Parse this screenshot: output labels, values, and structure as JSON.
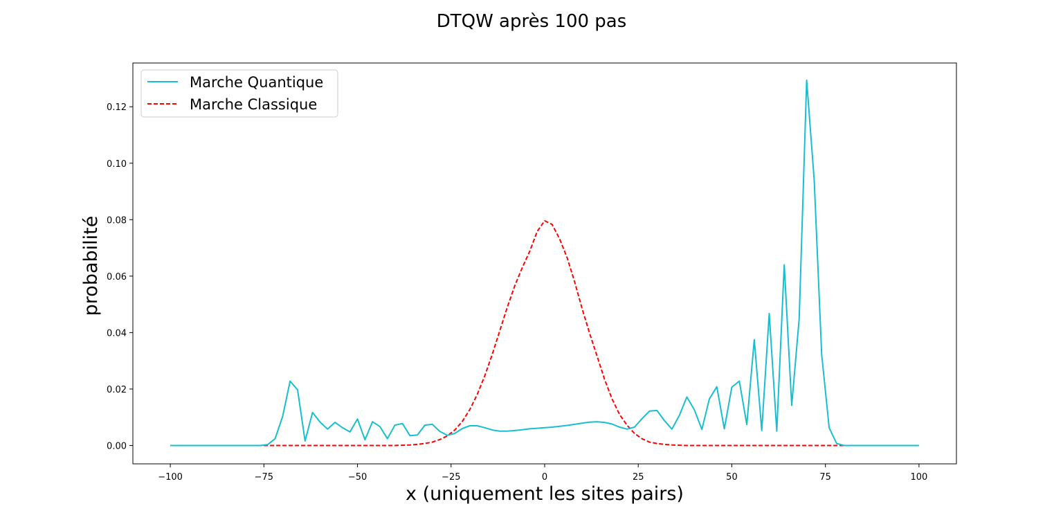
{
  "chart_data": {
    "type": "line",
    "title": "DTQW après 100 pas",
    "xlabel": "x (uniquement les sites pairs)",
    "ylabel": "probabilité",
    "xlim": [
      -110,
      110
    ],
    "ylim": [
      -0.0065,
      0.1355
    ],
    "xticks": [
      -100,
      -75,
      -50,
      -25,
      0,
      25,
      50,
      75,
      100
    ],
    "xtick_labels": [
      "−100",
      "−75",
      "−50",
      "−25",
      "0",
      "25",
      "50",
      "75",
      "100"
    ],
    "yticks": [
      0.0,
      0.02,
      0.04,
      0.06,
      0.08,
      0.1,
      0.12
    ],
    "ytick_labels": [
      "0.00",
      "0.02",
      "0.04",
      "0.06",
      "0.08",
      "0.10",
      "0.12"
    ],
    "legend_position": "upper-left",
    "colors": {
      "quantum": "#17becf",
      "classical": "#ff0000"
    },
    "x": [
      -100,
      -98,
      -96,
      -94,
      -92,
      -90,
      -88,
      -86,
      -84,
      -82,
      -80,
      -78,
      -76,
      -74,
      -72,
      -70,
      -68,
      -66,
      -64,
      -62,
      -60,
      -58,
      -56,
      -54,
      -52,
      -50,
      -48,
      -46,
      -44,
      -42,
      -40,
      -38,
      -36,
      -34,
      -32,
      -30,
      -28,
      -26,
      -24,
      -22,
      -20,
      -18,
      -16,
      -14,
      -12,
      -10,
      -8,
      -6,
      -4,
      -2,
      0,
      2,
      4,
      6,
      8,
      10,
      12,
      14,
      16,
      18,
      20,
      22,
      24,
      26,
      28,
      30,
      32,
      34,
      36,
      38,
      40,
      42,
      44,
      46,
      48,
      50,
      52,
      54,
      56,
      58,
      60,
      62,
      64,
      66,
      68,
      70,
      72,
      74,
      76,
      78,
      80,
      82,
      84,
      86,
      88,
      90,
      92,
      94,
      96,
      98,
      100
    ],
    "series": [
      {
        "name": "Marche Quantique",
        "style": "solid",
        "values": [
          0,
          0,
          0,
          0,
          0,
          0,
          0,
          0,
          0,
          0,
          0,
          0,
          0,
          0.0003,
          0.0024,
          0.0103,
          0.0228,
          0.0197,
          0.0016,
          0.0117,
          0.0083,
          0.0058,
          0.0082,
          0.0063,
          0.0048,
          0.0094,
          0.002,
          0.0084,
          0.0067,
          0.0024,
          0.0072,
          0.0078,
          0.0035,
          0.0037,
          0.0072,
          0.0075,
          0.005,
          0.0036,
          0.0043,
          0.006,
          0.007,
          0.007,
          0.0063,
          0.0055,
          0.0051,
          0.0051,
          0.0053,
          0.0056,
          0.0059,
          0.0061,
          0.0063,
          0.0065,
          0.0068,
          0.0071,
          0.0075,
          0.0079,
          0.0083,
          0.0084,
          0.0082,
          0.0076,
          0.0065,
          0.0058,
          0.0065,
          0.0095,
          0.0122,
          0.0124,
          0.0088,
          0.0058,
          0.0107,
          0.0172,
          0.0126,
          0.0057,
          0.0165,
          0.0208,
          0.0059,
          0.0207,
          0.0228,
          0.0074,
          0.0375,
          0.0053,
          0.0468,
          0.0051,
          0.064,
          0.0142,
          0.045,
          0.1294,
          0.094,
          0.0322,
          0.0063,
          0.0007,
          0,
          0,
          0,
          0,
          0,
          0,
          0,
          0,
          0,
          0,
          0
        ]
      },
      {
        "name": "Marche Classique",
        "style": "dashed",
        "values": [
          0,
          0,
          0,
          0,
          0,
          0,
          0,
          0,
          0,
          0,
          0,
          0,
          0,
          0,
          0,
          0,
          0,
          0,
          0,
          0,
          0,
          0,
          0,
          0,
          0,
          0,
          0,
          0,
          0,
          0,
          0,
          0.0001,
          0.0002,
          0.0004,
          0.0007,
          0.0012,
          0.0021,
          0.0034,
          0.0055,
          0.0085,
          0.0127,
          0.0181,
          0.0247,
          0.0323,
          0.0406,
          0.0489,
          0.0565,
          0.0629,
          0.0688,
          0.0758,
          0.0796,
          0.0783,
          0.0732,
          0.0665,
          0.058,
          0.0485,
          0.0398,
          0.0317,
          0.0235,
          0.0165,
          0.011,
          0.0072,
          0.0043,
          0.0024,
          0.0012,
          0.0007,
          0.0004,
          0.0002,
          0.0001,
          0,
          0,
          0,
          0,
          0,
          0,
          0,
          0,
          0,
          0,
          0,
          0,
          0,
          0,
          0,
          0,
          0,
          0,
          0,
          0,
          0,
          0,
          0,
          0,
          0,
          0,
          0,
          0,
          0,
          0,
          0,
          0
        ]
      }
    ]
  }
}
